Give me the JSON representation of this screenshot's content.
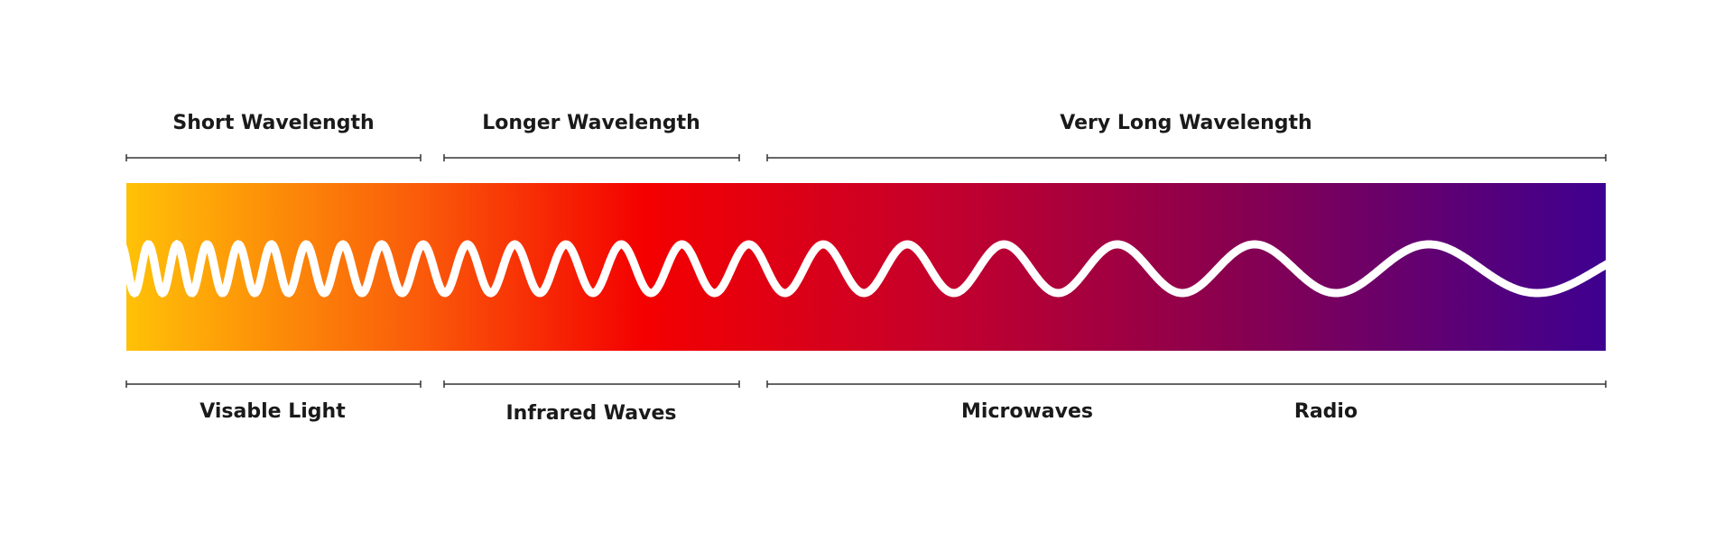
{
  "header_labels": [
    "Short Wavelength",
    "Longer Wavelength",
    "Very Long Wavelength"
  ],
  "footer_labels": [
    "Visable Light",
    "Infrared Waves",
    "Microwaves",
    "Radio"
  ]
}
